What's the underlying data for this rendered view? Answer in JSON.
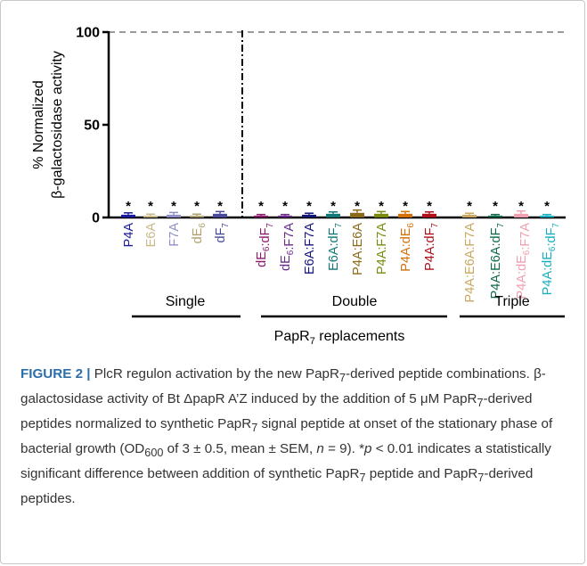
{
  "chart_data": {
    "type": "bar",
    "ylabel_line1": "% Normalized",
    "ylabel_line2": "β-galactosidase activity",
    "ylim": [
      0,
      100
    ],
    "yticks": [
      0,
      50,
      100
    ],
    "reference_line": 100,
    "xlabel_prefix": "PapR",
    "xlabel_sub": "7",
    "xlabel_suffix": " replacements",
    "groups": [
      {
        "name": "Single",
        "categories": [
          {
            "label": "P4A",
            "parts": [
              [
                "P4A",
                ""
              ]
            ],
            "value": 1.5,
            "err": 1.0,
            "color": "#1a1aa0",
            "sig": "*"
          },
          {
            "label": "E6A",
            "parts": [
              [
                "E6A",
                ""
              ]
            ],
            "value": 1.0,
            "err": 0.8,
            "color": "#c9b98a",
            "sig": "*"
          },
          {
            "label": "F7A",
            "parts": [
              [
                "F7A",
                ""
              ]
            ],
            "value": 1.5,
            "err": 1.2,
            "color": "#8f8fc8",
            "sig": "*"
          },
          {
            "label": "dE6",
            "parts": [
              [
                "dE",
                "6"
              ]
            ],
            "value": 1.0,
            "err": 0.8,
            "color": "#b0a070",
            "sig": "*"
          },
          {
            "label": "dF7",
            "parts": [
              [
                "dF",
                "7"
              ]
            ],
            "value": 2.0,
            "err": 1.2,
            "color": "#4a4a9a",
            "sig": "*"
          }
        ]
      },
      {
        "name": "Double",
        "categories": [
          {
            "label": "dE6:dF7",
            "parts": [
              [
                "dE",
                "6"
              ],
              [
                ":dF",
                "7"
              ]
            ],
            "value": 1.0,
            "err": 0.6,
            "color": "#8a1a6a",
            "sig": "*"
          },
          {
            "label": "dE6:F7A",
            "parts": [
              [
                "dE",
                "6"
              ],
              [
                ":F7A",
                ""
              ]
            ],
            "value": 1.0,
            "err": 0.6,
            "color": "#6a2a8a",
            "sig": "*"
          },
          {
            "label": "E6A:F7A",
            "parts": [
              [
                "E6A:F7A",
                ""
              ]
            ],
            "value": 1.5,
            "err": 0.8,
            "color": "#15157a",
            "sig": "*"
          },
          {
            "label": "E6A:dF7",
            "parts": [
              [
                "E6A:dF",
                "7"
              ]
            ],
            "value": 2.0,
            "err": 1.0,
            "color": "#127878",
            "sig": "*"
          },
          {
            "label": "P4A:E6A",
            "parts": [
              [
                "P4A:E6A",
                ""
              ]
            ],
            "value": 2.5,
            "err": 1.5,
            "color": "#8a6a1a",
            "sig": "*"
          },
          {
            "label": "P4A:F7A",
            "parts": [
              [
                "P4A:F7A",
                ""
              ]
            ],
            "value": 2.0,
            "err": 1.2,
            "color": "#7a8a10",
            "sig": "*"
          },
          {
            "label": "P4A:dE6",
            "parts": [
              [
                "P4A:dE",
                "6"
              ]
            ],
            "value": 2.0,
            "err": 1.2,
            "color": "#d2700a",
            "sig": "*"
          },
          {
            "label": "P4A:dF7",
            "parts": [
              [
                "P4A:dF",
                "7"
              ]
            ],
            "value": 2.0,
            "err": 1.0,
            "color": "#b0101a",
            "sig": "*"
          }
        ]
      },
      {
        "name": "Triple",
        "categories": [
          {
            "label": "P4A:E6A:F7A",
            "parts": [
              [
                "P4A:E6A:F7A",
                ""
              ]
            ],
            "value": 1.5,
            "err": 0.8,
            "color": "#c9a860",
            "sig": "*"
          },
          {
            "label": "P4A:E6A:dF7",
            "parts": [
              [
                "P4A:E6A:dF",
                "7"
              ]
            ],
            "value": 1.0,
            "err": 0.6,
            "color": "#0f6a4a",
            "sig": "*"
          },
          {
            "label": "P4A:dE6:F7A",
            "parts": [
              [
                "P4A:dE",
                "6"
              ],
              [
                ":F7A",
                ""
              ]
            ],
            "value": 2.0,
            "err": 1.5,
            "color": "#f0a0b0",
            "sig": "*"
          },
          {
            "label": "P4A:dE6:dF7",
            "parts": [
              [
                "P4A:dE",
                "6"
              ],
              [
                ":dF",
                "7"
              ]
            ],
            "value": 1.0,
            "err": 0.6,
            "color": "#18b0c0",
            "sig": "*"
          }
        ]
      }
    ]
  },
  "caption": {
    "figure_label": "FIGURE 2",
    "separator": " | ",
    "seg1": "PlcR regulon activation by the new PapR",
    "sub1": "7",
    "seg2": "-derived peptide combinations. β-galactosidase activity of Bt ΔpapR A’Z induced by the addition of 5 μM PapR",
    "sub2": "7",
    "seg3": "-derived peptides normalized to synthetic PapR",
    "sub3": "7",
    "seg4": " signal peptide at onset of the stationary phase of bacterial growth (OD",
    "sub4": "600",
    "seg5": " of 3 ± 0.5, mean ± SEM, ",
    "italic_n": "n",
    "seg6": " = 9). *",
    "italic_p": "p",
    "seg7": " < 0.01 indicates a statistically significant difference between addition of synthetic PapR",
    "sub5": "7",
    "seg8": " peptide and PapR",
    "sub6": "7",
    "seg9": "-derived peptides."
  }
}
